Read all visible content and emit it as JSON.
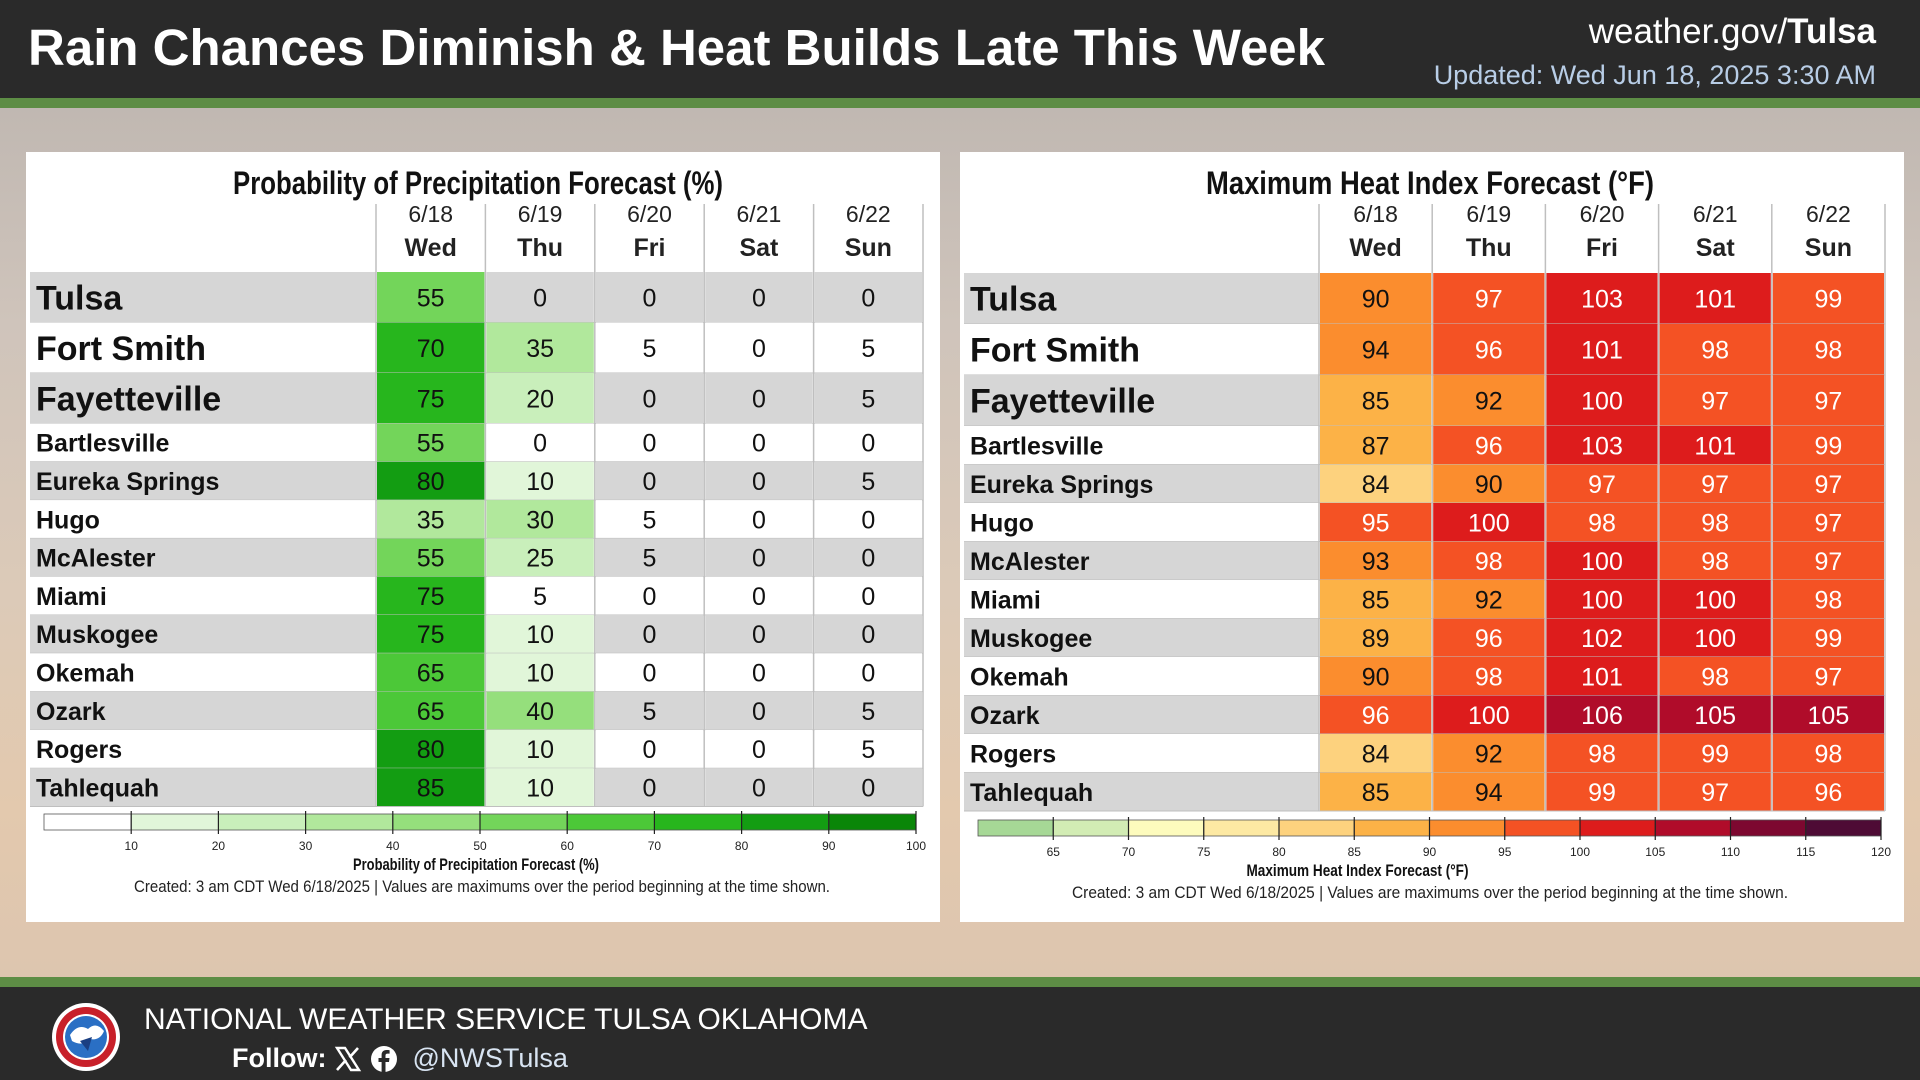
{
  "header": {
    "title": "Rain Chances Diminish & Heat Builds Late This Week",
    "site_prefix": "weather.gov/",
    "site_office": "Tulsa",
    "updated": "Updated: Wed Jun 18, 2025 3:30 AM"
  },
  "footer": {
    "org": "NATIONAL WEATHER SERVICE TULSA OKLAHOMA",
    "follow_label": "Follow:",
    "handle": "@NWSTulsa",
    "icons": [
      "nws-logo-icon",
      "x-icon",
      "facebook-icon"
    ]
  },
  "chart_data": [
    {
      "type": "table",
      "title": "Probability of Precipitation Forecast (%)",
      "columns": [
        {
          "date": "6/18",
          "day": "Wed"
        },
        {
          "date": "6/19",
          "day": "Thu"
        },
        {
          "date": "6/20",
          "day": "Fri"
        },
        {
          "date": "6/21",
          "day": "Sat"
        },
        {
          "date": "6/22",
          "day": "Sun"
        }
      ],
      "rows": [
        {
          "city": "Tulsa",
          "values": [
            55,
            0,
            0,
            0,
            0
          ]
        },
        {
          "city": "Fort Smith",
          "values": [
            70,
            35,
            5,
            0,
            5
          ]
        },
        {
          "city": "Fayetteville",
          "values": [
            75,
            20,
            0,
            0,
            5
          ]
        },
        {
          "city": "Bartlesville",
          "values": [
            55,
            0,
            0,
            0,
            0
          ]
        },
        {
          "city": "Eureka Springs",
          "values": [
            80,
            10,
            0,
            0,
            5
          ]
        },
        {
          "city": "Hugo",
          "values": [
            35,
            30,
            5,
            0,
            0
          ]
        },
        {
          "city": "McAlester",
          "values": [
            55,
            25,
            5,
            0,
            0
          ]
        },
        {
          "city": "Miami",
          "values": [
            75,
            5,
            0,
            0,
            0
          ]
        },
        {
          "city": "Muskogee",
          "values": [
            75,
            10,
            0,
            0,
            0
          ]
        },
        {
          "city": "Okemah",
          "values": [
            65,
            10,
            0,
            0,
            0
          ]
        },
        {
          "city": "Ozark",
          "values": [
            65,
            40,
            5,
            0,
            5
          ]
        },
        {
          "city": "Rogers",
          "values": [
            80,
            10,
            0,
            0,
            5
          ]
        },
        {
          "city": "Tahlequah",
          "values": [
            85,
            10,
            0,
            0,
            0
          ]
        }
      ],
      "legend": {
        "title": "Probability of Precipitation Forecast (%)",
        "ticks": [
          10,
          20,
          30,
          40,
          50,
          60,
          70,
          80,
          90,
          100
        ],
        "colors": [
          "#ffffff",
          "#e1f6d9",
          "#c9efbb",
          "#b1e89c",
          "#95df7c",
          "#73d55a",
          "#4cc838",
          "#27b61d",
          "#139d12",
          "#0a8608"
        ]
      },
      "note": "Created: 3 am CDT Wed 6/18/2025  |  Values are maximums over the period beginning at the time shown."
    },
    {
      "type": "table",
      "title": "Maximum Heat Index Forecast (°F)",
      "columns": [
        {
          "date": "6/18",
          "day": "Wed"
        },
        {
          "date": "6/19",
          "day": "Thu"
        },
        {
          "date": "6/20",
          "day": "Fri"
        },
        {
          "date": "6/21",
          "day": "Sat"
        },
        {
          "date": "6/22",
          "day": "Sun"
        }
      ],
      "rows": [
        {
          "city": "Tulsa",
          "values": [
            90,
            97,
            103,
            101,
            99
          ]
        },
        {
          "city": "Fort Smith",
          "values": [
            94,
            96,
            101,
            98,
            98
          ]
        },
        {
          "city": "Fayetteville",
          "values": [
            85,
            92,
            100,
            97,
            97
          ]
        },
        {
          "city": "Bartlesville",
          "values": [
            87,
            96,
            103,
            101,
            99
          ]
        },
        {
          "city": "Eureka Springs",
          "values": [
            84,
            90,
            97,
            97,
            97
          ]
        },
        {
          "city": "Hugo",
          "values": [
            95,
            100,
            98,
            98,
            97
          ]
        },
        {
          "city": "McAlester",
          "values": [
            93,
            98,
            100,
            98,
            97
          ]
        },
        {
          "city": "Miami",
          "values": [
            85,
            92,
            100,
            100,
            98
          ]
        },
        {
          "city": "Muskogee",
          "values": [
            89,
            96,
            102,
            100,
            99
          ]
        },
        {
          "city": "Okemah",
          "values": [
            90,
            98,
            101,
            98,
            97
          ]
        },
        {
          "city": "Ozark",
          "values": [
            96,
            100,
            106,
            105,
            105
          ]
        },
        {
          "city": "Rogers",
          "values": [
            84,
            92,
            98,
            99,
            98
          ]
        },
        {
          "city": "Tahlequah",
          "values": [
            85,
            94,
            99,
            97,
            96
          ]
        }
      ],
      "legend": {
        "title": "Maximum Heat Index Forecast (°F)",
        "ticks": [
          65,
          70,
          75,
          80,
          85,
          90,
          95,
          100,
          105,
          110,
          115,
          120
        ],
        "colors": [
          "#a6d896",
          "#d2ecb4",
          "#fdfbbd",
          "#fde9a3",
          "#fdd27e",
          "#fcb247",
          "#fb8d2e",
          "#f45224",
          "#dd1c1c",
          "#b00c2a",
          "#7d0830",
          "#4e0b35"
        ]
      },
      "note": "Created: 3 am CDT Wed 6/18/2025  |  Values are maximums over the period beginning at the time shown."
    }
  ]
}
